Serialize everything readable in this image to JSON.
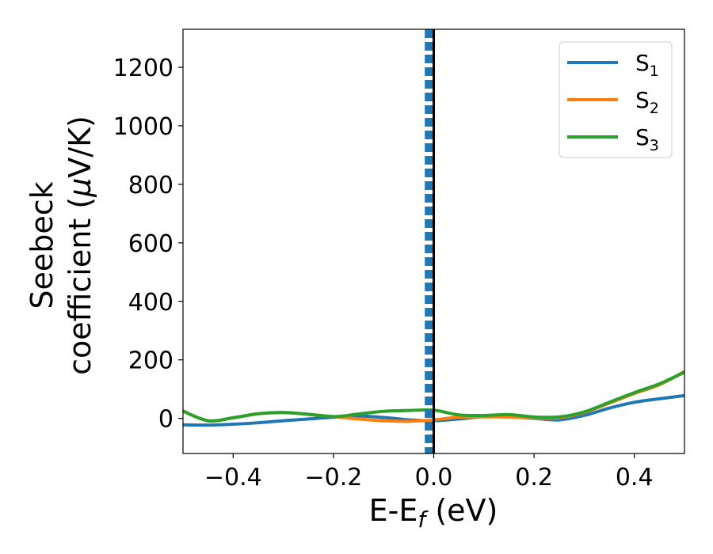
{
  "chart_data": {
    "type": "line",
    "title": "",
    "xlabel": {
      "main": "E-E",
      "sub": "f",
      "unit": " (eV)"
    },
    "ylabel": {
      "line1": "Seebeck",
      "line2": "coefficient  (",
      "mu": "μ",
      "line2_end": "V/K)"
    },
    "xlim": [
      -0.5,
      0.5
    ],
    "ylim": [
      -120,
      1330
    ],
    "x_ticks": [
      -0.4,
      -0.2,
      0.0,
      0.2,
      0.4
    ],
    "x_tick_labels": [
      "−0.4",
      "−0.2",
      "0.0",
      "0.2",
      "0.4"
    ],
    "y_ticks": [
      0,
      200,
      400,
      600,
      800,
      1000,
      1200
    ],
    "y_tick_labels": [
      "0",
      "200",
      "400",
      "600",
      "800",
      "1000",
      "1200"
    ],
    "grid": false,
    "legend_position": "top-right",
    "vertical_lines": [
      {
        "x": 0.0,
        "style": "solid",
        "color": "#000000"
      },
      {
        "x": -0.01,
        "style": "dashed",
        "color": "#1f77b4"
      }
    ],
    "series": [
      {
        "name": "S",
        "sub": "1",
        "color": "#1f77b4",
        "x": [
          -0.5,
          -0.45,
          -0.4,
          -0.35,
          -0.3,
          -0.25,
          -0.2,
          -0.15,
          -0.1,
          -0.05,
          0.0,
          0.05,
          0.1,
          0.15,
          0.2,
          0.25,
          0.3,
          0.35,
          0.4,
          0.45,
          0.5
        ],
        "y": [
          -22,
          -23,
          -20,
          -15,
          -8,
          -2,
          4,
          8,
          3,
          -5,
          -8,
          -2,
          6,
          5,
          0,
          -5,
          10,
          35,
          55,
          67,
          78
        ]
      },
      {
        "name": "S",
        "sub": "2",
        "color": "#ff7f0e",
        "x": [
          -0.5,
          -0.45,
          -0.4,
          -0.35,
          -0.3,
          -0.25,
          -0.2,
          -0.15,
          -0.1,
          -0.05,
          0.0,
          0.05,
          0.1,
          0.15,
          0.2,
          0.25,
          0.3,
          0.35,
          0.4,
          0.45,
          0.5
        ],
        "y": [
          25,
          -8,
          2,
          16,
          20,
          14,
          6,
          -2,
          -8,
          -10,
          -5,
          4,
          5,
          5,
          1,
          2,
          20,
          52,
          85,
          115,
          160
        ]
      },
      {
        "name": "S",
        "sub": "3",
        "color": "#2ca02c",
        "x": [
          -0.5,
          -0.45,
          -0.4,
          -0.35,
          -0.3,
          -0.25,
          -0.2,
          -0.15,
          -0.1,
          -0.05,
          0.0,
          0.05,
          0.1,
          0.15,
          0.2,
          0.25,
          0.3,
          0.35,
          0.4,
          0.45,
          0.5
        ],
        "y": [
          25,
          -8,
          2,
          16,
          20,
          14,
          6,
          15,
          24,
          27,
          28,
          12,
          10,
          13,
          5,
          5,
          22,
          55,
          88,
          118,
          158
        ]
      }
    ]
  }
}
